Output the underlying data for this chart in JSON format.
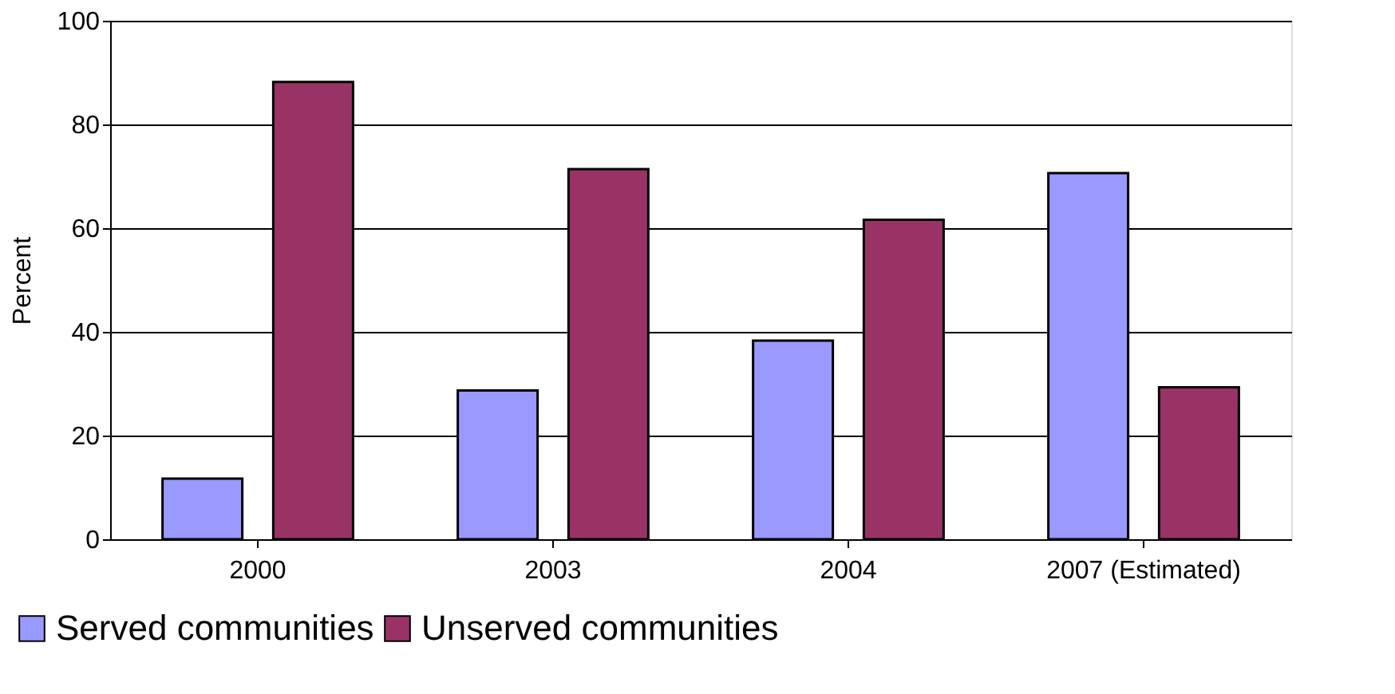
{
  "chart_data": {
    "type": "bar",
    "ylabel": "Percent",
    "categories": [
      "2000",
      "2003",
      "2004",
      "2007 (Estimated)"
    ],
    "series": [
      {
        "name": "Served communities",
        "color": "#9999ff",
        "values": [
          11.7,
          28.7,
          38.3,
          70.6
        ]
      },
      {
        "name": "Unserved communities",
        "color": "#993366",
        "values": [
          88.2,
          71.4,
          61.6,
          29.3
        ]
      }
    ],
    "ylim": [
      0,
      100
    ],
    "yticks": [
      0,
      20,
      40,
      60,
      80,
      100
    ],
    "grid": "y",
    "legend": "bottom left"
  }
}
